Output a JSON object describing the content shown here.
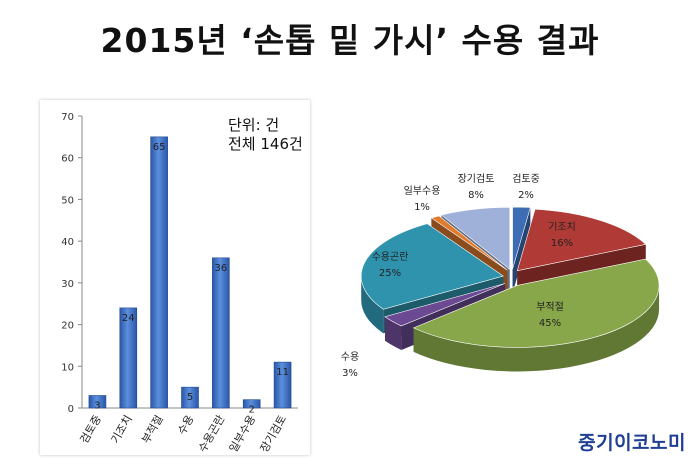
{
  "title": "2015년 ‘손톱 밑 가시’ 수용 결과",
  "brand": "중기이코노미",
  "chart_data": [
    {
      "type": "bar",
      "categories": [
        "검토중",
        "기조치",
        "부적절",
        "수용",
        "수용곤란",
        "일부수용",
        "장기검토"
      ],
      "values": [
        3,
        24,
        65,
        5,
        36,
        2,
        11
      ],
      "ylim": [
        0,
        70
      ],
      "yticks": [
        0,
        10,
        20,
        30,
        40,
        50,
        60,
        70
      ],
      "grid": false,
      "annotation_unit": "단위: 건",
      "annotation_total": "전체 146건",
      "bar_color": "#3a6fc4"
    },
    {
      "type": "pie",
      "slices": [
        {
          "label": "검토중",
          "percent": "2%",
          "value": 2,
          "color": "#3d6db5"
        },
        {
          "label": "기조치",
          "percent": "16%",
          "value": 16,
          "color": "#b03a36"
        },
        {
          "label": "부적절",
          "percent": "45%",
          "value": 45,
          "color": "#87a74a"
        },
        {
          "label": "수용",
          "percent": "3%",
          "value": 3,
          "color": "#6b4a93"
        },
        {
          "label": "수용곤란",
          "percent": "25%",
          "value": 25,
          "color": "#2f93ad"
        },
        {
          "label": "일부수용",
          "percent": "1%",
          "value": 1,
          "color": "#e07b2e"
        },
        {
          "label": "장기검토",
          "percent": "8%",
          "value": 8,
          "color": "#9fb1d8"
        }
      ]
    }
  ]
}
